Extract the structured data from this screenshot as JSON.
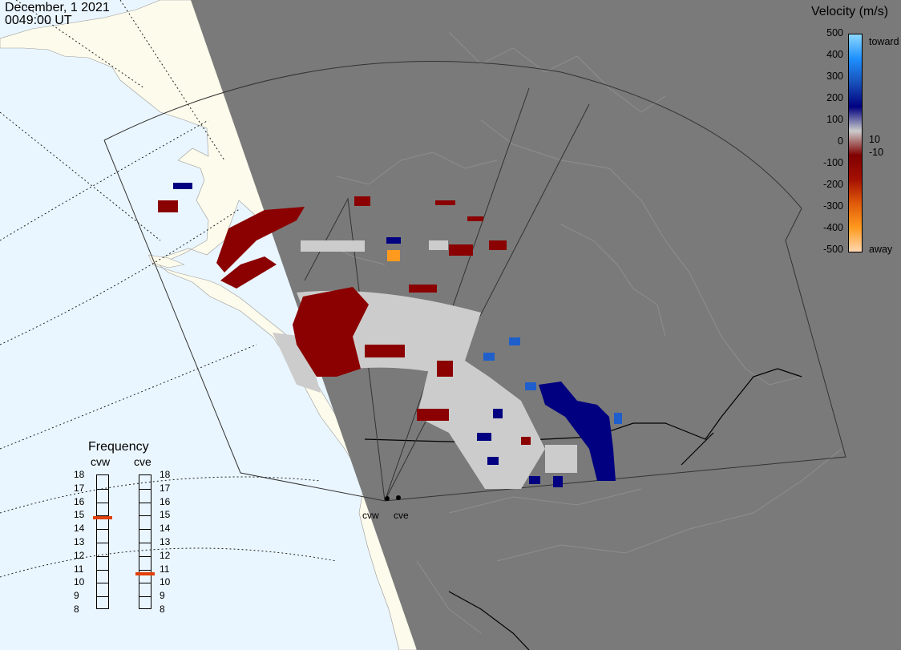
{
  "header": {
    "date": "December, 1 2021",
    "time": "0049:00 UT"
  },
  "colorbar": {
    "title": "Velocity (m/s)",
    "ticks": [
      "500",
      "400",
      "300",
      "200",
      "100",
      "0",
      "-100",
      "-200",
      "-300",
      "-400",
      "-500"
    ],
    "inner_ticks": [
      "10",
      "-10"
    ],
    "toward_label": "toward",
    "away_label": "away",
    "colors": [
      "#ffd7b0",
      "#ff9a1e",
      "#e05a0a",
      "#a41000",
      "#800000",
      "#cccccc",
      "#000080",
      "#1850b8",
      "#1e90ff",
      "#8ed8ff"
    ]
  },
  "frequency": {
    "title": "Frequency",
    "sites": [
      {
        "name": "cvw",
        "freq_mhz": 14.8
      },
      {
        "name": "cve",
        "freq_mhz": 10.6
      }
    ],
    "scale": [
      "18",
      "17",
      "16",
      "15",
      "14",
      "13",
      "12",
      "11",
      "10",
      "9",
      "8"
    ]
  },
  "radars": [
    {
      "label": "cvw"
    },
    {
      "label": "cve"
    }
  ],
  "map_colors": {
    "ocean": "#eaf6ff",
    "land": "#fdfbec",
    "night": "#7a7a7a",
    "ground_scatter": "#cccccc",
    "away_dark_red": "#8b0000",
    "toward_navy": "#000080",
    "toward_blue": "#1f5fcc"
  }
}
